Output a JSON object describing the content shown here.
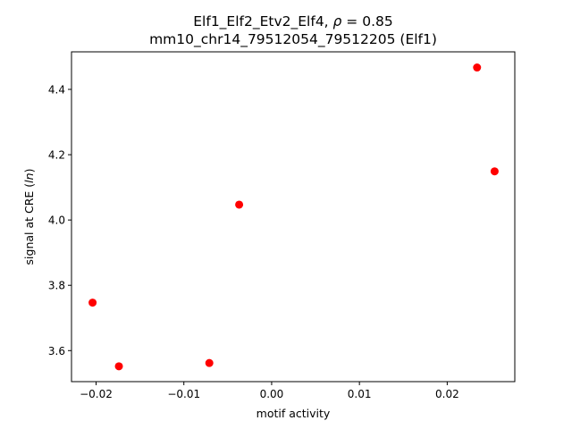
{
  "chart_data": {
    "type": "scatter",
    "title_line1_prefix": "Elf1_Elf2_Etv2_Elf4, ",
    "title_line1_rho": "ρ",
    "title_line1_suffix": " = 0.85",
    "title_line2": "mm10_chr14_79512054_79512205 (Elf1)",
    "xlabel": "motif activity",
    "ylabel_prefix": "signal at CRE (",
    "ylabel_italic": "ln",
    "ylabel_suffix": ")",
    "xlim": [
      -0.0228,
      0.0277
    ],
    "ylim": [
      3.505,
      4.515
    ],
    "xticks": [
      -0.02,
      -0.01,
      0.0,
      0.01,
      0.02
    ],
    "xtick_labels": [
      "−0.02",
      "−0.01",
      "0.00",
      "0.01",
      "0.02"
    ],
    "yticks": [
      3.6,
      3.8,
      4.0,
      4.2,
      4.4
    ],
    "ytick_labels": [
      "3.6",
      "3.8",
      "4.0",
      "4.2",
      "4.4"
    ],
    "marker_color": "#ff0000",
    "grid": false,
    "points": [
      {
        "x": -0.0204,
        "y": 3.747
      },
      {
        "x": -0.0174,
        "y": 3.552
      },
      {
        "x": -0.0071,
        "y": 3.562
      },
      {
        "x": -0.0037,
        "y": 4.047
      },
      {
        "x": 0.0234,
        "y": 4.467
      },
      {
        "x": 0.0254,
        "y": 4.149
      }
    ]
  }
}
